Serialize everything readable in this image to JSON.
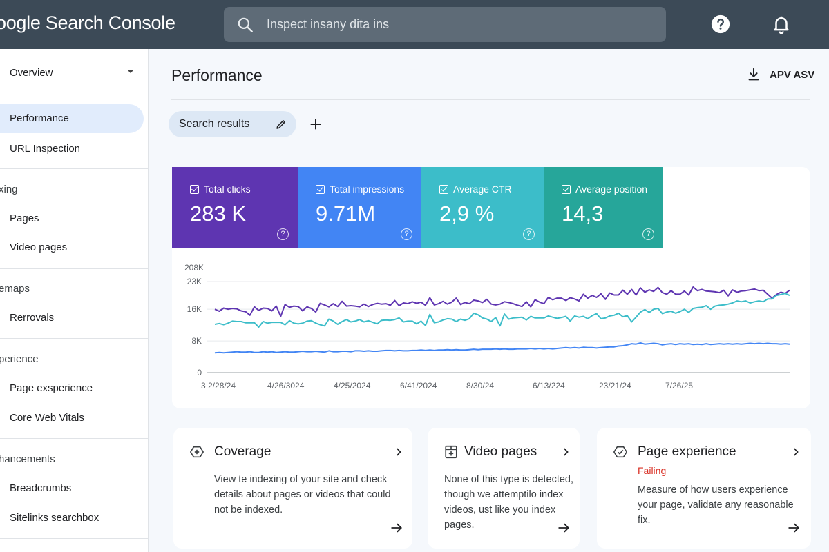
{
  "header": {
    "app_title": "oogle Search Console",
    "search_placeholder": "Inspect insany dita ins",
    "icons": [
      "search-icon",
      "help-icon",
      "bell-icon"
    ]
  },
  "sidebar": {
    "overview": "Overview",
    "performance": "Performance",
    "url_inspection": "URL Inspection",
    "section_indexing": "xing",
    "pages": "Pages",
    "video_pages": "Video pages",
    "section_sitemaps": "emaps",
    "removals": "Rerrovals",
    "section_experience": "perience",
    "page_experience": "Page exsperience",
    "core_web_vitals": "Core Web Vitals",
    "section_enhancements": "hancements",
    "breadcrumbs": "Breadcrumbs",
    "sitelinks": "Sitelinks searchbox"
  },
  "main": {
    "title": "Performance",
    "export_label": "APV ASV",
    "filter_chip": "Search results"
  },
  "metrics": [
    {
      "label": "Total clicks",
      "value": "283 K",
      "color": "#5e35b1"
    },
    {
      "label": "Total impressions",
      "value": "9.71M",
      "color": "#4285f4"
    },
    {
      "label": "Average CTR",
      "value": "2,9 %",
      "color": "#3cbdc9"
    },
    {
      "label": "Average position",
      "value": "14,3",
      "color": "#26a69a"
    }
  ],
  "chart_data": {
    "type": "line",
    "y_top_label": "208K",
    "y_ticks": [
      "23K",
      "16K",
      "8K",
      "0"
    ],
    "y_tick_values": [
      23000,
      16000,
      8000,
      0
    ],
    "ylim": [
      0,
      23000
    ],
    "x_labels": [
      "3 2/28/24",
      "4/26/3024",
      "4/25/2024",
      "6/41/2024",
      "8/30/24",
      "6/13/224",
      "23/21/24",
      "7/26/25"
    ],
    "series": [
      {
        "color": "#5e35b1",
        "values": [
          16000,
          15500,
          16300,
          16000,
          16200,
          16100,
          15600,
          15400,
          14500,
          16600,
          15700,
          16300,
          16200,
          15600,
          16800,
          14200,
          17200,
          16500,
          16800,
          16700,
          15600,
          16600,
          16200,
          15300,
          17500,
          17100,
          16600,
          17400,
          16700,
          18000,
          16800,
          16900,
          16800,
          16600,
          17300,
          16700,
          17200,
          17500,
          17300,
          17400,
          17000,
          18200,
          16900,
          17600,
          17400,
          17900,
          17500,
          17800,
          17000,
          18900,
          17100,
          17400,
          18000,
          17300,
          17800,
          18800,
          17200,
          17700,
          17400,
          18300,
          18100,
          17700,
          18500,
          17300,
          17100,
          17300,
          17900,
          17700,
          17400,
          17000,
          16700,
          17900,
          16600,
          18400,
          17800,
          17400,
          19000,
          18400,
          18800,
          18800,
          18200,
          18900,
          18600,
          18100,
          19800,
          18800,
          19500,
          19000,
          19900,
          18500,
          20100,
          19600,
          19600,
          20800,
          19800,
          21000,
          19600,
          21400,
          20300,
          20900,
          20500,
          21500,
          20200,
          19800,
          20700,
          19800,
          19800,
          20600,
          19600,
          21600,
          20700,
          21000,
          20600,
          20500,
          20400,
          20200,
          20800,
          19400,
          20900,
          20300,
          20600,
          20700,
          20900,
          21100,
          20700,
          20800,
          19800,
          18800,
          19700,
          20300,
          20000,
          20800
        ]
      },
      {
        "color": "#3cbdc9",
        "values": [
          12200,
          12400,
          12100,
          12500,
          13000,
          12900,
          12900,
          12600,
          12600,
          12600,
          11500,
          12900,
          12500,
          12700,
          12700,
          12700,
          12100,
          13100,
          12500,
          12300,
          12500,
          13000,
          13100,
          12500,
          12100,
          11800,
          13500,
          13000,
          12200,
          12900,
          13400,
          12800,
          13000,
          13400,
          12800,
          13100,
          12700,
          12300,
          13200,
          13300,
          13200,
          13400,
          13800,
          12800,
          13000,
          13000,
          12300,
          13000,
          11900,
          14700,
          12600,
          12800,
          13300,
          13600,
          13500,
          12900,
          13500,
          13200,
          13600,
          15000,
          14600,
          13800,
          13500,
          12900,
          13900,
          11800,
          14800,
          13500,
          13800,
          13900,
          14000,
          13300,
          14200,
          13800,
          13800,
          13800,
          14300,
          14000,
          13700,
          13900,
          14200,
          13000,
          14300,
          14000,
          14200,
          13600,
          14400,
          14900,
          13600,
          13800,
          14300,
          14500,
          15000,
          14100,
          14400,
          12800,
          14000,
          15300,
          15900,
          15200,
          16000,
          16200,
          14900,
          15300,
          15500,
          15000,
          15400,
          16000,
          15200,
          16200,
          16400,
          16500,
          16900,
          16000,
          16800,
          17000,
          17100,
          17300,
          17600,
          18100,
          17900,
          18100,
          17600,
          17900,
          18100,
          17900,
          18600,
          18600,
          19500,
          19700,
          20000,
          19500
        ]
      },
      {
        "color": "#4285f4",
        "values": [
          5000,
          5100,
          5000,
          5100,
          5200,
          5300,
          5200,
          5200,
          5300,
          5100,
          5100,
          5300,
          5200,
          5300,
          5100,
          5200,
          5300,
          5200,
          5200,
          5300,
          5400,
          5300,
          5300,
          5400,
          5300,
          5200,
          5500,
          5300,
          5300,
          5400,
          5400,
          5300,
          5500,
          5500,
          5400,
          5500,
          5400,
          5400,
          5500,
          5600,
          5600,
          5500,
          5600,
          5500,
          5500,
          5600,
          5600,
          5700,
          5600,
          5700,
          5600,
          5700,
          5700,
          5800,
          5700,
          5800,
          5700,
          5700,
          5800,
          5900,
          5800,
          5900,
          5900,
          5900,
          6000,
          5900,
          6000,
          5900,
          5900,
          6000,
          6000,
          6000,
          6100,
          6000,
          6100,
          6000,
          6100,
          6000,
          6100,
          6200,
          6300,
          6200,
          6300,
          6200,
          6400,
          6300,
          6300,
          6200,
          6300,
          6400,
          6500,
          6500,
          6700,
          6800,
          7000,
          7300,
          7200,
          7500,
          7200,
          7300,
          7400,
          7300,
          7000,
          7200,
          7300,
          7100,
          7300,
          7200,
          7300,
          7100,
          7200,
          7100,
          7300,
          7100,
          7200,
          7300,
          7200,
          7300,
          7200,
          7300,
          7200,
          7300,
          7400,
          7300,
          7400,
          7300,
          7400,
          7300,
          7300,
          7200,
          7300,
          7200
        ]
      }
    ]
  },
  "cards": [
    {
      "title": "Coverage",
      "status": "",
      "body": "View te indexing of your site and check details about pages or videos that could not be indexed."
    },
    {
      "title": "Video pages",
      "status": "",
      "body": "None of this type is detected, though we attemptilo index videos, ust like you index pages."
    },
    {
      "title": "Page experience",
      "status": "Failing",
      "body": "Measure of how users experience your page, validate any reasonable fix."
    }
  ]
}
